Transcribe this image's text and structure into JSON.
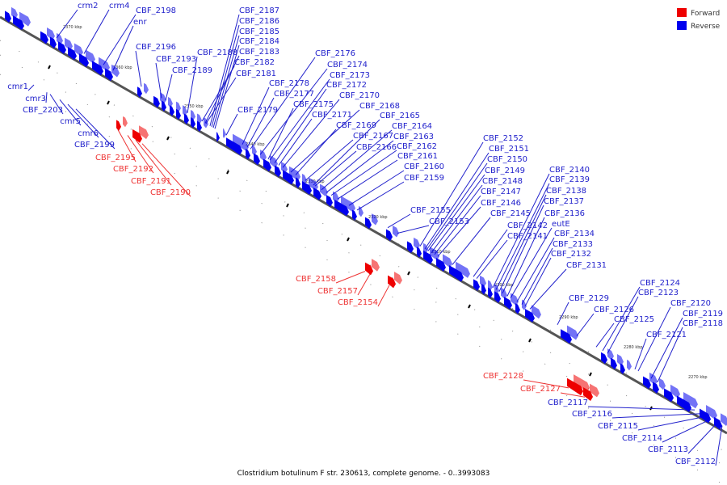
{
  "caption": "Clostridium botulinum F str. 230613, complete genome. - 0..3993083",
  "colors": {
    "forward": "#ee0000",
    "reverse": "#0000ee",
    "forward_line": "#ee3333",
    "reverse_line": "#2222cc"
  },
  "legend": {
    "forward_label": "Forward",
    "reverse_label": "Reverse"
  },
  "scale_ticks": [
    "2370 kbp",
    "2360 kbp",
    "2350 kbp",
    "2340 kbp",
    "2330 kbp",
    "2320 kbp",
    "2310 kbp",
    "2300 kbp",
    "2290 kbp",
    "2280 kbp",
    "2270 kbp"
  ],
  "reverse_labels": [
    "crm2",
    "crm4",
    "CBF_2198",
    "enr",
    "CBF_2196",
    "CBF_2193",
    "CBF_2189",
    "cmr1",
    "cmr3",
    "CBF_2203",
    "cmr5",
    "cmr6",
    "CBF_2199",
    "CBF_2187",
    "CBF_2186",
    "CBF_2185",
    "CBF_2184",
    "CBF_2188",
    "CBF_2183",
    "CBF_2182",
    "CBF_2181",
    "CBF_2179",
    "CBF_2176",
    "CBF_2174",
    "CBF_2173",
    "CBF_2178",
    "CBF_2172",
    "CBF_2177",
    "CBF_2170",
    "CBF_2175",
    "CBF_2168",
    "CBF_2171",
    "CBF_2165",
    "CBF_2169",
    "CBF_2164",
    "CBF_2167",
    "CBF_2163",
    "CBF_2166",
    "CBF_2162",
    "CBF_2161",
    "CBF_2160",
    "CBF_2159",
    "CBF_2155",
    "CBF_2153",
    "CBF_2152",
    "CBF_2151",
    "CBF_2150",
    "CBF_2149",
    "CBF_2148",
    "CBF_2147",
    "CBF_2146",
    "CBF_2145",
    "CBF_2142",
    "CBF_2141",
    "CBF_2140",
    "CBF_2139",
    "CBF_2138",
    "CBF_2137",
    "CBF_2136",
    "eutE",
    "CBF_2134",
    "CBF_2133",
    "CBF_2132",
    "CBF_2131",
    "CBF_2129",
    "CBF_2126",
    "CBF_2125",
    "CBF_2124",
    "CBF_2123",
    "CBF_2120",
    "CBF_2119",
    "CBF_2118",
    "CBF_2121",
    "CBF_2117",
    "CBF_2116",
    "CBF_2115",
    "CBF_2114",
    "CBF_2113",
    "CBF_2112"
  ],
  "forward_labels": [
    "CBF_2195",
    "CBF_2192",
    "CBF_2191",
    "CBF_2190",
    "CBF_2158",
    "CBF_2157",
    "CBF_2154",
    "CBF_2128",
    "CBF_2127"
  ]
}
